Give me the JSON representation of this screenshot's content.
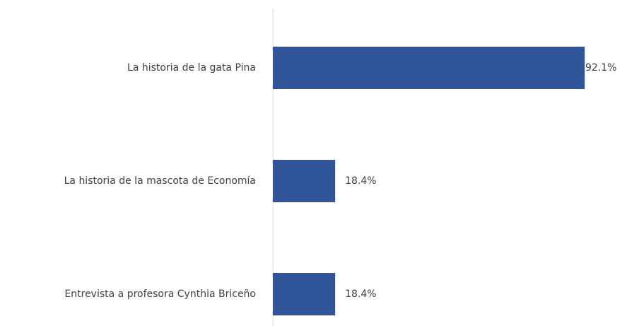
{
  "chart_data": {
    "type": "bar",
    "orientation": "horizontal",
    "categories": [
      "La historia de la gata Pina",
      "La historia de la mascota de Economía",
      "Entrevista a profesora Cynthia Briceño"
    ],
    "values": [
      92.1,
      18.4,
      18.4
    ],
    "value_labels": [
      "92.1%",
      "18.4%",
      "18.4%"
    ],
    "color": "#2f5597",
    "xlim": [
      0,
      100
    ]
  }
}
